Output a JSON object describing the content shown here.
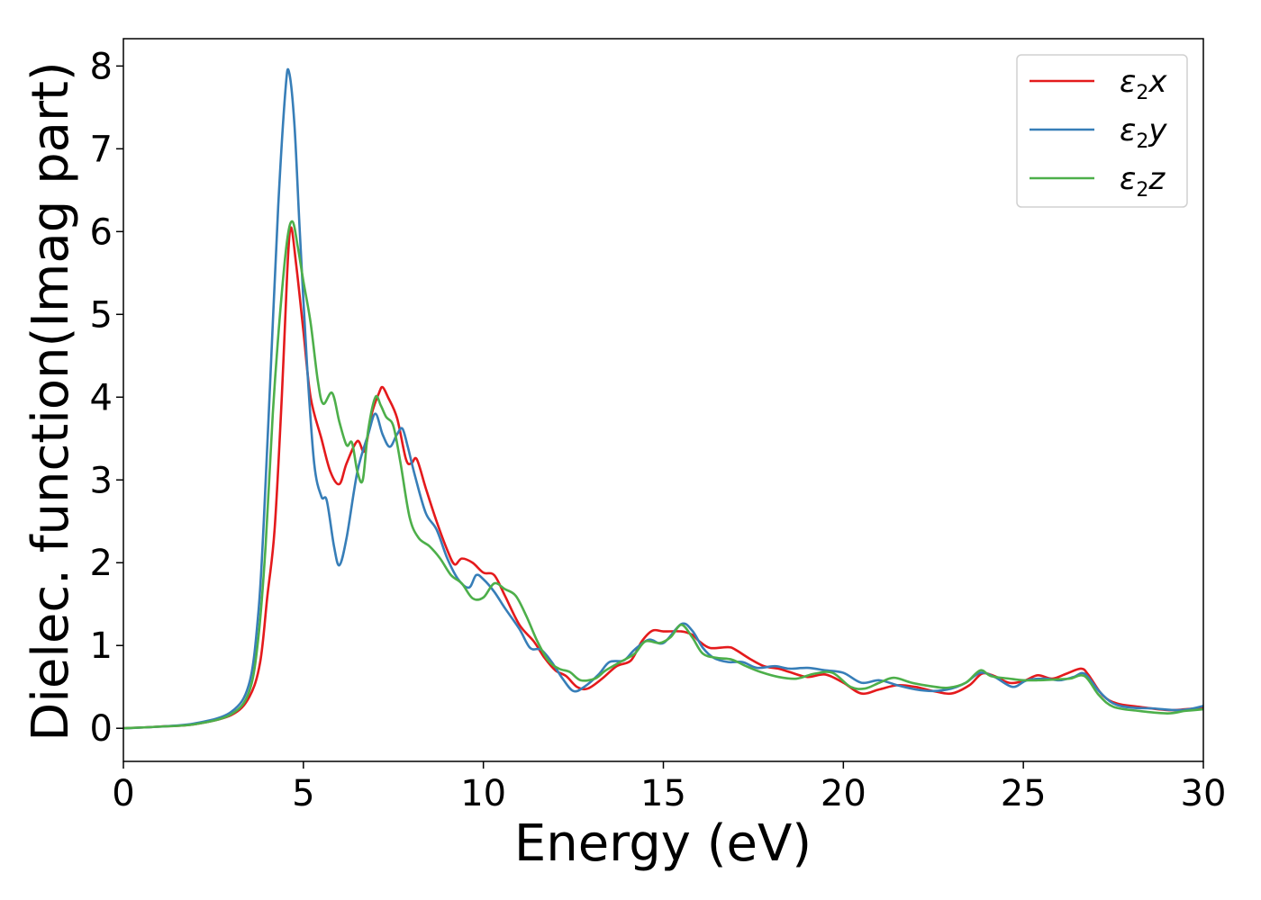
{
  "chart_data": {
    "type": "line",
    "title": "",
    "xlabel": "Energy (eV)",
    "ylabel": "Dielec. function(Imag part)",
    "xlim": [
      0,
      30
    ],
    "ylim": [
      -0.4,
      8.33
    ],
    "xticks": [
      0,
      5,
      10,
      15,
      20,
      25,
      30
    ],
    "yticks": [
      0,
      1,
      2,
      3,
      4,
      5,
      6,
      7,
      8
    ],
    "grid": false,
    "legend_position": "top-right",
    "series": [
      {
        "name": "ε2x",
        "legend": {
          "base": "ε",
          "sub": "2",
          "suffix": "x"
        },
        "color": "#e41a1c",
        "points": [
          [
            0,
            0
          ],
          [
            1,
            0.02
          ],
          [
            2,
            0.05
          ],
          [
            3,
            0.16
          ],
          [
            3.5,
            0.38
          ],
          [
            3.8,
            0.8
          ],
          [
            4.0,
            1.6
          ],
          [
            4.2,
            2.4
          ],
          [
            4.4,
            4.0
          ],
          [
            4.55,
            5.5
          ],
          [
            4.65,
            6.05
          ],
          [
            4.8,
            5.6
          ],
          [
            5.0,
            4.8
          ],
          [
            5.2,
            4.0
          ],
          [
            5.5,
            3.5
          ],
          [
            5.75,
            3.1
          ],
          [
            6.0,
            2.95
          ],
          [
            6.2,
            3.2
          ],
          [
            6.5,
            3.47
          ],
          [
            6.7,
            3.35
          ],
          [
            6.9,
            3.8
          ],
          [
            7.1,
            4.05
          ],
          [
            7.2,
            4.12
          ],
          [
            7.35,
            4.0
          ],
          [
            7.6,
            3.75
          ],
          [
            7.85,
            3.25
          ],
          [
            8.0,
            3.2
          ],
          [
            8.15,
            3.25
          ],
          [
            8.4,
            2.9
          ],
          [
            8.7,
            2.5
          ],
          [
            9.0,
            2.15
          ],
          [
            9.2,
            1.98
          ],
          [
            9.4,
            2.05
          ],
          [
            9.7,
            2.0
          ],
          [
            10.0,
            1.88
          ],
          [
            10.3,
            1.85
          ],
          [
            10.6,
            1.6
          ],
          [
            11.0,
            1.25
          ],
          [
            11.4,
            1.05
          ],
          [
            11.7,
            0.85
          ],
          [
            12.0,
            0.7
          ],
          [
            12.3,
            0.63
          ],
          [
            12.6,
            0.5
          ],
          [
            12.9,
            0.48
          ],
          [
            13.3,
            0.6
          ],
          [
            13.7,
            0.75
          ],
          [
            14.1,
            0.82
          ],
          [
            14.4,
            1.05
          ],
          [
            14.7,
            1.18
          ],
          [
            15.0,
            1.17
          ],
          [
            15.5,
            1.17
          ],
          [
            15.8,
            1.13
          ],
          [
            16.0,
            1.05
          ],
          [
            16.3,
            0.97
          ],
          [
            16.8,
            0.98
          ],
          [
            17.0,
            0.95
          ],
          [
            17.4,
            0.84
          ],
          [
            17.8,
            0.75
          ],
          [
            18.2,
            0.72
          ],
          [
            18.5,
            0.68
          ],
          [
            19.0,
            0.62
          ],
          [
            19.5,
            0.65
          ],
          [
            20.0,
            0.55
          ],
          [
            20.5,
            0.42
          ],
          [
            21.0,
            0.47
          ],
          [
            21.5,
            0.52
          ],
          [
            22.0,
            0.5
          ],
          [
            22.5,
            0.45
          ],
          [
            23.0,
            0.42
          ],
          [
            23.5,
            0.52
          ],
          [
            23.85,
            0.66
          ],
          [
            24.2,
            0.63
          ],
          [
            24.6,
            0.55
          ],
          [
            25.0,
            0.57
          ],
          [
            25.4,
            0.64
          ],
          [
            25.8,
            0.6
          ],
          [
            26.2,
            0.66
          ],
          [
            26.6,
            0.72
          ],
          [
            26.8,
            0.65
          ],
          [
            27.2,
            0.4
          ],
          [
            27.6,
            0.3
          ],
          [
            28.2,
            0.26
          ],
          [
            29.0,
            0.22
          ],
          [
            29.5,
            0.23
          ],
          [
            30.0,
            0.25
          ]
        ]
      },
      {
        "name": "ε2y",
        "legend": {
          "base": "ε",
          "sub": "2",
          "suffix": "y"
        },
        "color": "#377eb8",
        "points": [
          [
            0,
            0
          ],
          [
            1,
            0.02
          ],
          [
            2,
            0.06
          ],
          [
            3,
            0.2
          ],
          [
            3.5,
            0.55
          ],
          [
            3.75,
            1.4
          ],
          [
            3.9,
            2.5
          ],
          [
            4.1,
            4.4
          ],
          [
            4.3,
            6.3
          ],
          [
            4.5,
            7.7
          ],
          [
            4.6,
            7.93
          ],
          [
            4.75,
            7.3
          ],
          [
            4.9,
            6.0
          ],
          [
            5.1,
            4.4
          ],
          [
            5.3,
            3.2
          ],
          [
            5.5,
            2.8
          ],
          [
            5.65,
            2.75
          ],
          [
            5.85,
            2.2
          ],
          [
            6.0,
            1.97
          ],
          [
            6.2,
            2.3
          ],
          [
            6.5,
            3.1
          ],
          [
            6.8,
            3.55
          ],
          [
            7.0,
            3.8
          ],
          [
            7.2,
            3.55
          ],
          [
            7.4,
            3.4
          ],
          [
            7.6,
            3.55
          ],
          [
            7.75,
            3.62
          ],
          [
            7.9,
            3.4
          ],
          [
            8.1,
            3.05
          ],
          [
            8.4,
            2.6
          ],
          [
            8.7,
            2.4
          ],
          [
            9.0,
            2.05
          ],
          [
            9.3,
            1.8
          ],
          [
            9.6,
            1.7
          ],
          [
            9.8,
            1.85
          ],
          [
            10.0,
            1.8
          ],
          [
            10.3,
            1.65
          ],
          [
            10.6,
            1.45
          ],
          [
            11.0,
            1.2
          ],
          [
            11.3,
            0.97
          ],
          [
            11.6,
            0.95
          ],
          [
            11.9,
            0.8
          ],
          [
            12.2,
            0.6
          ],
          [
            12.5,
            0.45
          ],
          [
            12.8,
            0.5
          ],
          [
            13.2,
            0.65
          ],
          [
            13.5,
            0.8
          ],
          [
            13.9,
            0.82
          ],
          [
            14.2,
            0.95
          ],
          [
            14.6,
            1.07
          ],
          [
            15.0,
            1.03
          ],
          [
            15.5,
            1.26
          ],
          [
            15.8,
            1.18
          ],
          [
            16.1,
            0.97
          ],
          [
            16.4,
            0.85
          ],
          [
            16.8,
            0.8
          ],
          [
            17.2,
            0.8
          ],
          [
            17.6,
            0.73
          ],
          [
            18.1,
            0.75
          ],
          [
            18.5,
            0.72
          ],
          [
            19.0,
            0.73
          ],
          [
            19.5,
            0.7
          ],
          [
            20.0,
            0.67
          ],
          [
            20.5,
            0.55
          ],
          [
            21.0,
            0.58
          ],
          [
            21.5,
            0.52
          ],
          [
            22.0,
            0.47
          ],
          [
            22.5,
            0.45
          ],
          [
            23.0,
            0.48
          ],
          [
            23.4,
            0.55
          ],
          [
            23.8,
            0.67
          ],
          [
            24.2,
            0.62
          ],
          [
            24.7,
            0.5
          ],
          [
            25.1,
            0.58
          ],
          [
            25.6,
            0.6
          ],
          [
            26.0,
            0.58
          ],
          [
            26.4,
            0.62
          ],
          [
            26.7,
            0.66
          ],
          [
            27.1,
            0.45
          ],
          [
            27.5,
            0.3
          ],
          [
            28.0,
            0.25
          ],
          [
            28.6,
            0.24
          ],
          [
            29.2,
            0.22
          ],
          [
            29.6,
            0.23
          ],
          [
            30.0,
            0.27
          ]
        ]
      },
      {
        "name": "ε2z",
        "legend": {
          "base": "ε",
          "sub": "2",
          "suffix": "z"
        },
        "color": "#4daf4a",
        "points": [
          [
            0,
            0
          ],
          [
            1,
            0.02
          ],
          [
            2,
            0.05
          ],
          [
            3,
            0.17
          ],
          [
            3.5,
            0.45
          ],
          [
            3.75,
            1.1
          ],
          [
            3.95,
            2.2
          ],
          [
            4.15,
            3.8
          ],
          [
            4.35,
            5.0
          ],
          [
            4.55,
            5.9
          ],
          [
            4.7,
            6.12
          ],
          [
            4.85,
            5.8
          ],
          [
            5.0,
            5.4
          ],
          [
            5.2,
            4.9
          ],
          [
            5.4,
            4.2
          ],
          [
            5.55,
            3.92
          ],
          [
            5.8,
            4.05
          ],
          [
            6.0,
            3.7
          ],
          [
            6.2,
            3.42
          ],
          [
            6.35,
            3.45
          ],
          [
            6.5,
            3.1
          ],
          [
            6.65,
            3.0
          ],
          [
            6.8,
            3.6
          ],
          [
            7.0,
            4.0
          ],
          [
            7.15,
            3.9
          ],
          [
            7.3,
            3.76
          ],
          [
            7.5,
            3.65
          ],
          [
            7.7,
            3.2
          ],
          [
            7.95,
            2.55
          ],
          [
            8.2,
            2.3
          ],
          [
            8.5,
            2.2
          ],
          [
            8.8,
            2.05
          ],
          [
            9.1,
            1.85
          ],
          [
            9.4,
            1.75
          ],
          [
            9.7,
            1.57
          ],
          [
            10.0,
            1.58
          ],
          [
            10.3,
            1.75
          ],
          [
            10.6,
            1.68
          ],
          [
            10.9,
            1.6
          ],
          [
            11.2,
            1.35
          ],
          [
            11.5,
            1.05
          ],
          [
            11.8,
            0.82
          ],
          [
            12.1,
            0.72
          ],
          [
            12.4,
            0.68
          ],
          [
            12.7,
            0.58
          ],
          [
            13.1,
            0.6
          ],
          [
            13.4,
            0.7
          ],
          [
            13.8,
            0.8
          ],
          [
            14.2,
            0.9
          ],
          [
            14.5,
            1.05
          ],
          [
            14.9,
            1.03
          ],
          [
            15.2,
            1.1
          ],
          [
            15.5,
            1.25
          ],
          [
            15.8,
            1.1
          ],
          [
            16.1,
            0.9
          ],
          [
            16.5,
            0.85
          ],
          [
            16.9,
            0.83
          ],
          [
            17.3,
            0.75
          ],
          [
            17.7,
            0.68
          ],
          [
            18.2,
            0.62
          ],
          [
            18.7,
            0.6
          ],
          [
            19.2,
            0.66
          ],
          [
            19.7,
            0.67
          ],
          [
            20.2,
            0.5
          ],
          [
            20.6,
            0.48
          ],
          [
            21.0,
            0.55
          ],
          [
            21.4,
            0.61
          ],
          [
            21.9,
            0.55
          ],
          [
            22.4,
            0.51
          ],
          [
            22.9,
            0.49
          ],
          [
            23.4,
            0.55
          ],
          [
            23.8,
            0.7
          ],
          [
            24.1,
            0.63
          ],
          [
            24.6,
            0.6
          ],
          [
            25.0,
            0.58
          ],
          [
            25.4,
            0.58
          ],
          [
            25.9,
            0.59
          ],
          [
            26.3,
            0.6
          ],
          [
            26.7,
            0.63
          ],
          [
            27.1,
            0.4
          ],
          [
            27.5,
            0.26
          ],
          [
            28.2,
            0.21
          ],
          [
            29.0,
            0.18
          ],
          [
            29.5,
            0.21
          ],
          [
            30.0,
            0.23
          ]
        ]
      }
    ]
  }
}
